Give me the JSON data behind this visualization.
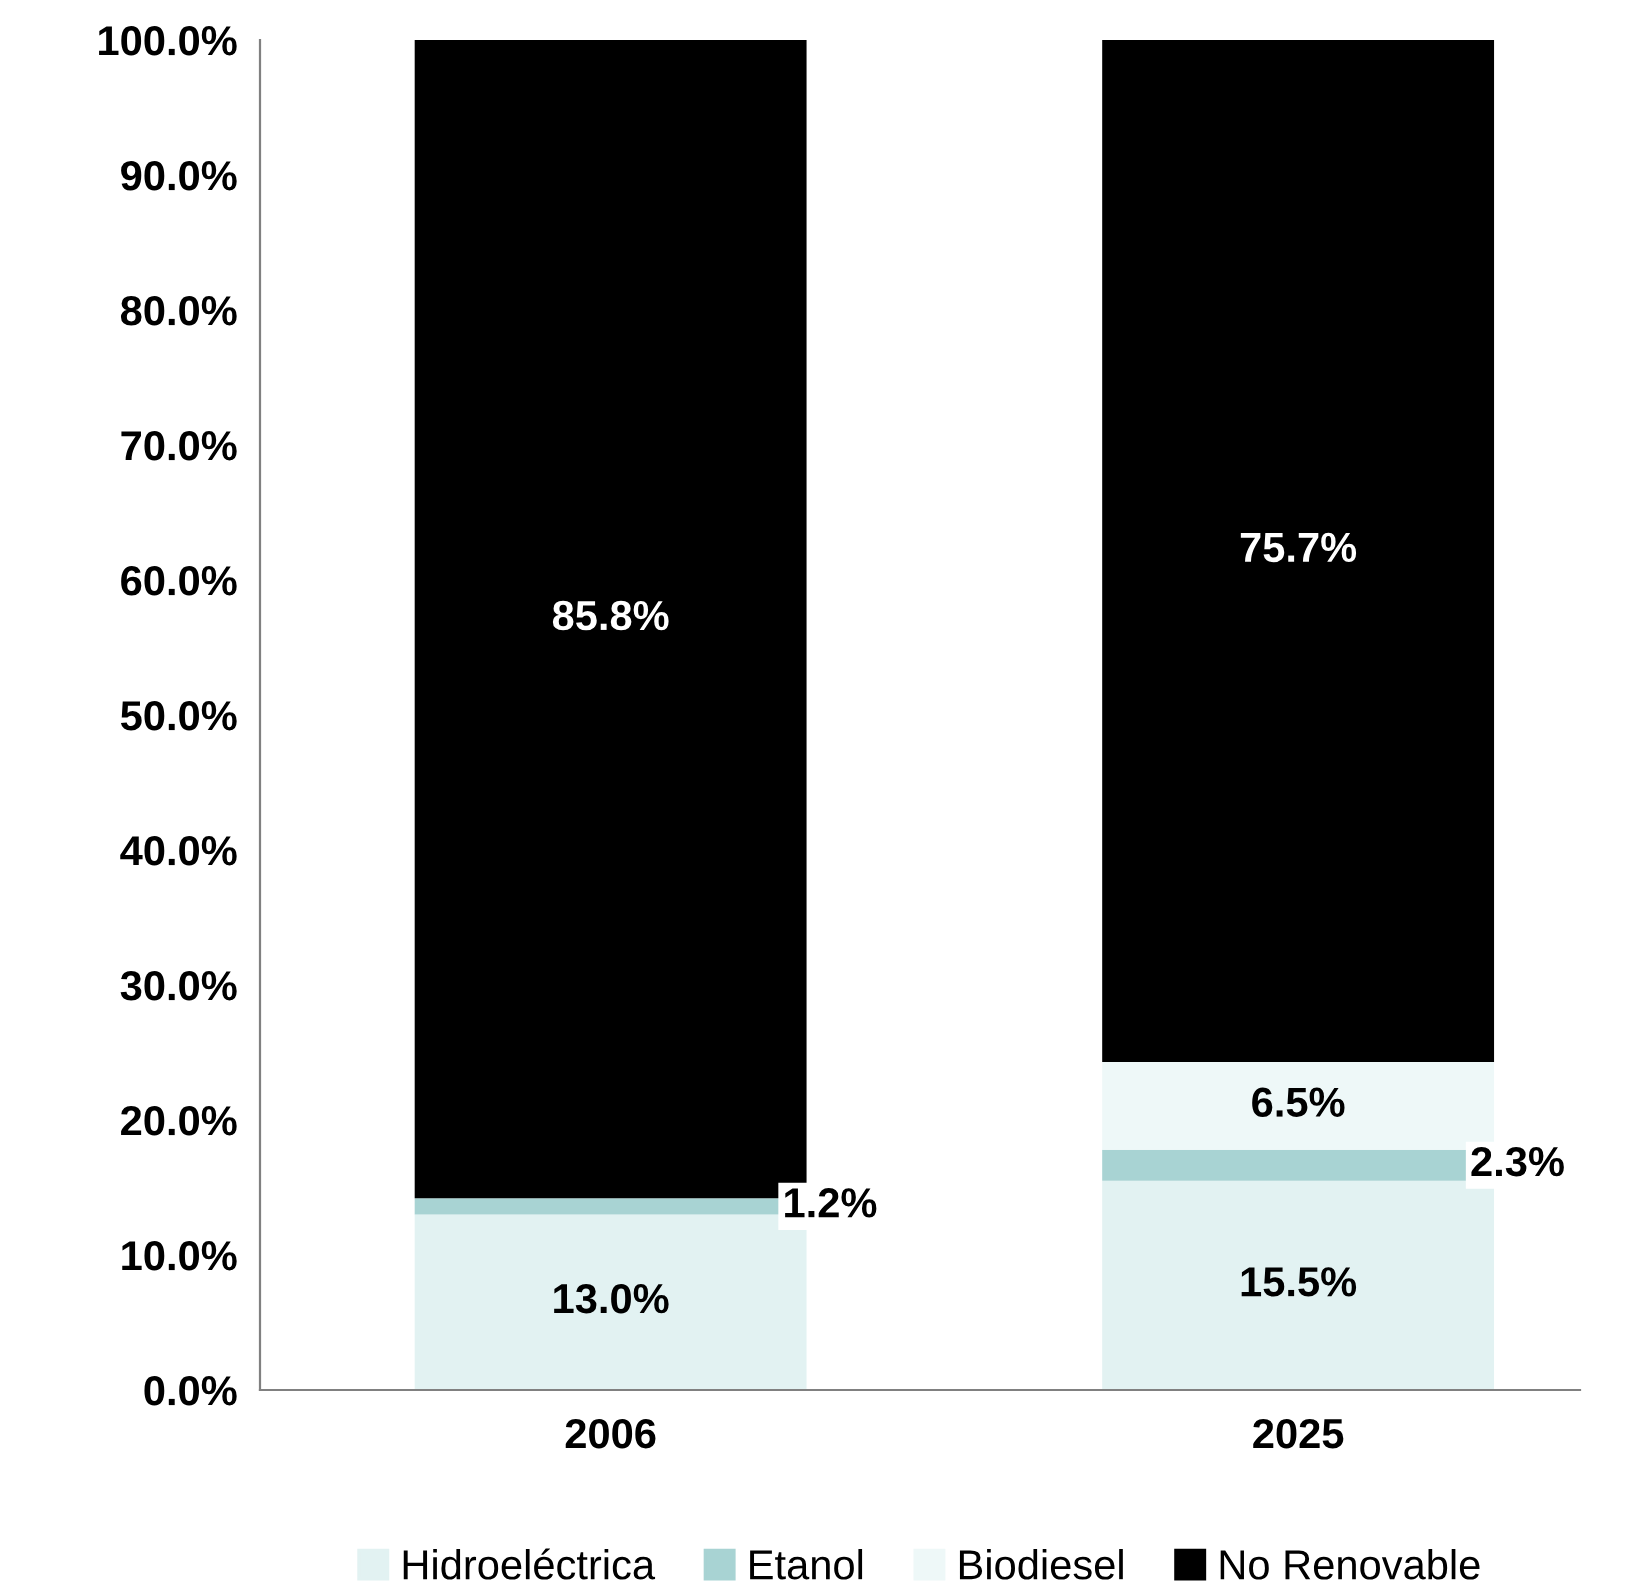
{
  "chart_data": {
    "type": "bar",
    "stacked": true,
    "categories": [
      "2006",
      "2025"
    ],
    "series": [
      {
        "name": "Hidroeléctrica",
        "color": "#e2f2f2",
        "values": [
          13.0,
          15.5
        ],
        "value_labels": [
          "13.0%",
          "15.5%"
        ]
      },
      {
        "name": "Etanol",
        "color": "#a8d3d3",
        "values": [
          1.2,
          2.3
        ],
        "value_labels": [
          "1.2%",
          "2.3%"
        ]
      },
      {
        "name": "Biodiesel",
        "color": "#eef8f8",
        "values": [
          0,
          6.5
        ],
        "value_labels": [
          null,
          "6.5%"
        ]
      },
      {
        "name": "No Renovable",
        "color": "#000000",
        "values": [
          85.8,
          75.7
        ],
        "value_labels": [
          "85.8%",
          "75.7%"
        ]
      }
    ],
    "ylim": [
      0,
      100
    ],
    "yticks": [
      {
        "value": 0,
        "label": "0.0%"
      },
      {
        "value": 10,
        "label": "10.0%"
      },
      {
        "value": 20,
        "label": "20.0%"
      },
      {
        "value": 30,
        "label": "30.0%"
      },
      {
        "value": 40,
        "label": "40.0%"
      },
      {
        "value": 50,
        "label": "50.0%"
      },
      {
        "value": 60,
        "label": "60.0%"
      },
      {
        "value": 70,
        "label": "70.0%"
      },
      {
        "value": 80,
        "label": "80.0%"
      },
      {
        "value": 90,
        "label": "90.0%"
      },
      {
        "value": 100,
        "label": "100.0%"
      }
    ],
    "grid": false,
    "legend": "bottom"
  }
}
